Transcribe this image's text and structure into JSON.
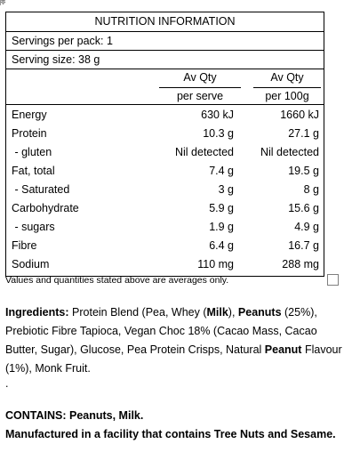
{
  "panel": {
    "title": "NUTRITION INFORMATION",
    "servings_per_pack": "Servings per pack: 1",
    "serving_size": "Serving size: 38 g",
    "col1_header": [
      "Av Qty",
      "per serve"
    ],
    "col2_header": [
      "Av Qty",
      "per 100g"
    ],
    "rows": [
      {
        "label": "Energy",
        "per_serve": "630 kJ",
        "per_100g": "1660 kJ"
      },
      {
        "label": "Protein",
        "per_serve": "10.3 g",
        "per_100g": "27.1 g"
      },
      {
        "label": " - gluten",
        "per_serve": "Nil detected",
        "per_100g": "Nil detected"
      },
      {
        "label": "Fat, total",
        "per_serve": "7.4 g",
        "per_100g": "19.5 g"
      },
      {
        "label": " - Saturated",
        "per_serve": "3 g",
        "per_100g": "8 g"
      },
      {
        "label": "Carbohydrate",
        "per_serve": "5.9 g",
        "per_100g": "15.6 g"
      },
      {
        "label": " - sugars",
        "per_serve": "1.9 g",
        "per_100g": "4.9 g"
      },
      {
        "label": "Fibre",
        "per_serve": "6.4 g",
        "per_100g": "16.7 g"
      },
      {
        "label": "Sodium",
        "per_serve": "110 mg",
        "per_100g": "288 mg"
      }
    ]
  },
  "footnote": "Values and quantities stated above are averages only.",
  "ingredients": {
    "lead": "Ingredients:",
    "t1": " Protein Blend (Pea, Whey (",
    "b1": "Milk",
    "t2": "), ",
    "b2": "Peanuts",
    "t3": " (25%), Prebiotic Fibre Tapioca, Vegan Choc 18% (Cacao Mass, Cacao Butter, Sugar), Glucose, Pea Protein Crisps, Natural ",
    "b3": "Peanut",
    "t4": " Flavour (1%), Monk Fruit."
  },
  "dot": ".",
  "contains": {
    "line1": "CONTAINS: Peanuts, Milk.",
    "line2": "Manufactured in a facility that contains Tree Nuts and Sesame."
  }
}
